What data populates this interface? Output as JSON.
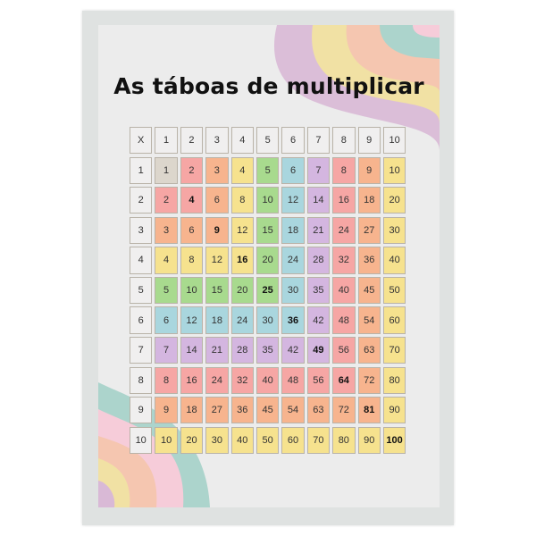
{
  "title": "As táboas de multiplicar",
  "table": {
    "corner": "X",
    "header": [
      "1",
      "2",
      "3",
      "4",
      "5",
      "6",
      "7",
      "8",
      "9",
      "10"
    ],
    "rows": [
      [
        "1",
        "1",
        "2",
        "3",
        "4",
        "5",
        "6",
        "7",
        "8",
        "9",
        "10"
      ],
      [
        "2",
        "2",
        "4",
        "6",
        "8",
        "10",
        "12",
        "14",
        "16",
        "18",
        "20"
      ],
      [
        "3",
        "3",
        "6",
        "9",
        "12",
        "15",
        "18",
        "21",
        "24",
        "27",
        "30"
      ],
      [
        "4",
        "4",
        "8",
        "12",
        "16",
        "20",
        "24",
        "28",
        "32",
        "36",
        "40"
      ],
      [
        "5",
        "5",
        "10",
        "15",
        "20",
        "25",
        "30",
        "35",
        "40",
        "45",
        "50"
      ],
      [
        "6",
        "6",
        "12",
        "18",
        "24",
        "30",
        "36",
        "42",
        "48",
        "54",
        "60"
      ],
      [
        "7",
        "7",
        "14",
        "21",
        "28",
        "35",
        "42",
        "49",
        "56",
        "63",
        "70"
      ],
      [
        "8",
        "8",
        "16",
        "24",
        "32",
        "40",
        "48",
        "56",
        "64",
        "72",
        "80"
      ],
      [
        "9",
        "9",
        "18",
        "27",
        "36",
        "45",
        "54",
        "63",
        "72",
        "81",
        "90"
      ],
      [
        "10",
        "10",
        "20",
        "30",
        "40",
        "50",
        "60",
        "70",
        "80",
        "90",
        "100"
      ]
    ]
  },
  "colors": {
    "header_cell": "#f0efef",
    "palette": [
      "#dcd6cc",
      "#f6a6a4",
      "#f7b48e",
      "#f6e28e",
      "#a8da8e",
      "#a9d6de",
      "#d4b6e0",
      "#f6a6a4",
      "#f7b48e",
      "#f6e28e"
    ],
    "deco": [
      "#d9b9d6",
      "#f1e1a4",
      "#f5c6b0",
      "#acd4cc",
      "#f6ccd9"
    ]
  }
}
